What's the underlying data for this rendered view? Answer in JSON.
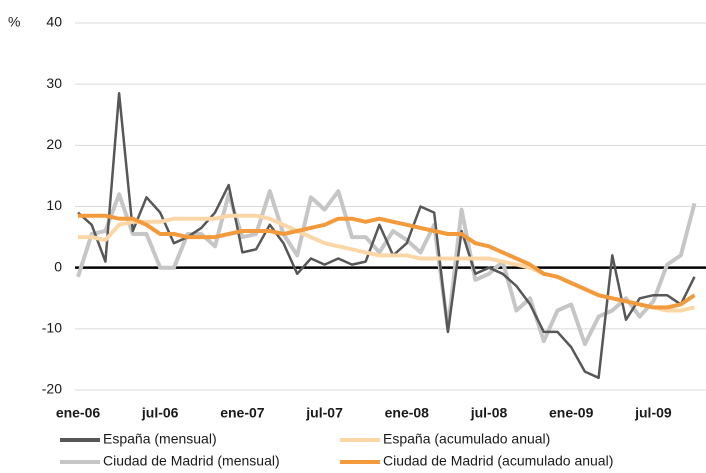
{
  "chart_data": {
    "type": "line",
    "y_label": "%",
    "categories": [
      "ene-06",
      null,
      null,
      null,
      null,
      null,
      "jul-06",
      null,
      null,
      null,
      null,
      null,
      "ene-07",
      null,
      null,
      null,
      null,
      null,
      "jul-07",
      null,
      null,
      null,
      null,
      null,
      "ene-08",
      null,
      null,
      null,
      null,
      null,
      "jul-08",
      null,
      null,
      null,
      null,
      null,
      "ene-09",
      null,
      null,
      null,
      null,
      null,
      "jul-09",
      null,
      null,
      null
    ],
    "series": [
      {
        "name": "España (mensual)",
        "color": "#575757",
        "width": 2.5,
        "values": [
          9,
          7,
          1,
          28.5,
          6,
          11.5,
          9,
          4,
          5,
          6.5,
          9,
          13.5,
          2.5,
          3,
          7,
          4,
          -1,
          1.5,
          0.5,
          1.5,
          0.5,
          1,
          7,
          2,
          4,
          10,
          9,
          -10.5,
          6,
          -1,
          0,
          -1,
          -3,
          -6,
          -10.5,
          -10.5,
          -13,
          -17,
          -18,
          2,
          -8.5,
          -5,
          -4.5,
          -4.5,
          -6,
          -1.5
        ]
      },
      {
        "name": "Ciudad de Madrid (mensual)",
        "color": "#c6c6c6",
        "width": 4,
        "values": [
          -1.5,
          5.5,
          6,
          12,
          5.5,
          5.5,
          0,
          0,
          5.5,
          5.5,
          3.5,
          12,
          5,
          5.5,
          12.5,
          5.5,
          2,
          11.5,
          9.5,
          12.5,
          5,
          5,
          2.5,
          6,
          4.5,
          2.5,
          7,
          -10,
          9.5,
          -2,
          -1,
          1,
          -7,
          -5,
          -12,
          -7,
          -6,
          -12.5,
          -8,
          -7,
          -5,
          -8,
          -5.5,
          0.5,
          2,
          10.5
        ]
      },
      {
        "name": "España (acumulado anual)",
        "color": "#fbd7a8",
        "width": 4,
        "values": [
          5,
          5,
          4.5,
          7,
          7.5,
          7.5,
          7.5,
          8,
          8,
          8,
          8,
          8.5,
          8.5,
          8.5,
          8,
          7,
          6,
          5,
          4,
          3.5,
          3,
          2.5,
          2,
          2,
          2,
          1.5,
          1.5,
          1.5,
          1.5,
          1.5,
          1.5,
          1,
          0.5,
          0,
          -1,
          -1.5,
          -2.5,
          -3.5,
          -4.5,
          -5,
          -5.5,
          -6,
          -6.5,
          -7,
          -7,
          -6.5
        ]
      },
      {
        "name": "Ciudad de Madrid (acumulado anual)",
        "color": "#f29a3c",
        "width": 4,
        "values": [
          8.5,
          8.5,
          8.5,
          8,
          8,
          7,
          5.5,
          5.5,
          5,
          5,
          5,
          5.5,
          6,
          6,
          6,
          5.5,
          6,
          6.5,
          7,
          8,
          8,
          7.5,
          8,
          7.5,
          7,
          6.5,
          6,
          5.5,
          5.5,
          4,
          3.5,
          2.5,
          1.5,
          0.5,
          -1,
          -1.5,
          -2.5,
          -3.5,
          -4.5,
          -5,
          -5.5,
          -6,
          -6.5,
          -6.5,
          -6,
          -4.5
        ]
      }
    ],
    "ylim": [
      -20,
      40
    ],
    "yticks": [
      -20,
      -10,
      0,
      10,
      20,
      30,
      40
    ],
    "grid": true
  }
}
